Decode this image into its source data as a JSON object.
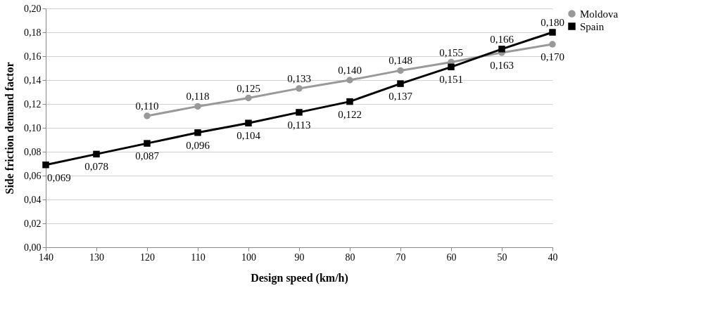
{
  "chart_data": {
    "type": "line",
    "xlabel": "Design speed (km/h)",
    "ylabel": "Side friction demand factor",
    "categories": [
      "140",
      "130",
      "120",
      "110",
      "100",
      "90",
      "80",
      "70",
      "60",
      "50",
      "40"
    ],
    "series": [
      {
        "name": "Moldova",
        "color": "#999999",
        "marker": "circle",
        "values": [
          null,
          null,
          0.11,
          0.118,
          0.125,
          0.133,
          0.14,
          0.148,
          0.155,
          0.163,
          0.17
        ],
        "value_labels": [
          null,
          null,
          "0,110",
          "0,118",
          "0,125",
          "0,133",
          "0,140",
          "0,148",
          "0,155",
          "0,163",
          "0,170"
        ]
      },
      {
        "name": "Spain",
        "color": "#000000",
        "marker": "square",
        "values": [
          0.069,
          0.078,
          0.087,
          0.096,
          0.104,
          0.113,
          0.122,
          0.137,
          0.151,
          0.166,
          0.18
        ],
        "value_labels": [
          "0,069",
          "0,078",
          "0,087",
          "0,096",
          "0,104",
          "0,113",
          "0,122",
          "0,137",
          "0,151",
          "0,166",
          "0,180"
        ]
      }
    ],
    "ylim": [
      0,
      0.2
    ],
    "yticks": [
      {
        "value": 0,
        "label": "0,00"
      },
      {
        "value": 0.02,
        "label": "0,02"
      },
      {
        "value": 0.04,
        "label": "0,04"
      },
      {
        "value": 0.06,
        "label": "0,06"
      },
      {
        "value": 0.08,
        "label": "0,08"
      },
      {
        "value": 0.1,
        "label": "0,10"
      },
      {
        "value": 0.12,
        "label": "0,12"
      },
      {
        "value": 0.14,
        "label": "0,14"
      },
      {
        "value": 0.16,
        "label": "0,16"
      },
      {
        "value": 0.18,
        "label": "0,18"
      },
      {
        "value": 0.2,
        "label": "0,20"
      }
    ],
    "grid": "y",
    "legend": "right",
    "line_style": "solid"
  }
}
